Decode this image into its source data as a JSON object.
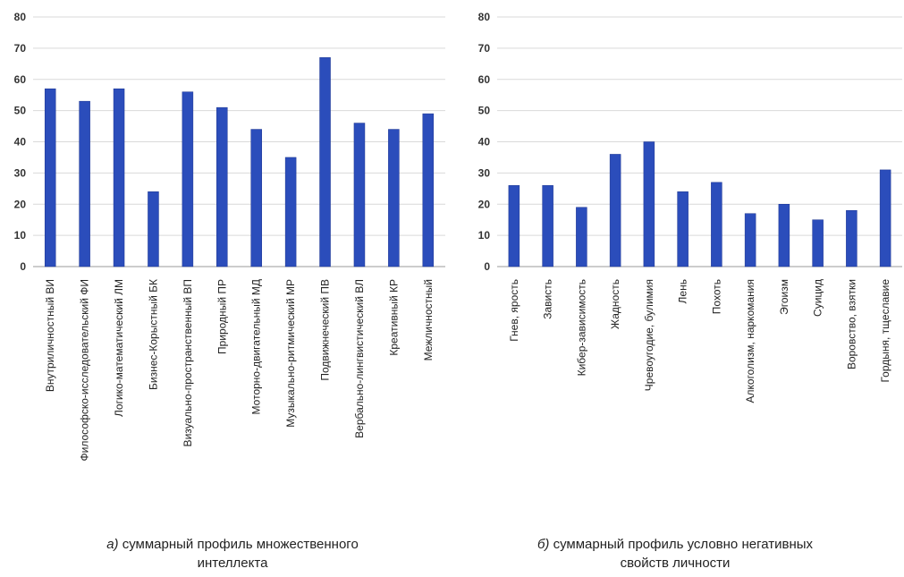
{
  "colors": {
    "bar": "#2b4dbb",
    "bar_edge": "#1c3590",
    "grid": "#d9d9d9"
  },
  "chart_data": [
    {
      "type": "bar",
      "title": "",
      "xlabel": "",
      "ylabel": "",
      "ylim": [
        0,
        80
      ],
      "yticks": [
        0,
        10,
        20,
        30,
        40,
        50,
        60,
        70,
        80
      ],
      "grid": true,
      "categories": [
        "Внутриличностный ВИ",
        "Философско-исследовательский ФИ",
        "Логико-математический ЛМ",
        "Бизнес-Корыстный БК",
        "Визуально-пространственный ВП",
        "Природный ПР",
        "Моторно-двигательный МД",
        "Музыкально-ритмический МР",
        "Подвижнеческий ПВ",
        "Вербально-лингвистический ВЛ",
        "Креативный КР",
        "Межличностный"
      ],
      "values": [
        57,
        53,
        57,
        24,
        56,
        51,
        44,
        35,
        67,
        46,
        44,
        49
      ]
    },
    {
      "type": "bar",
      "title": "",
      "xlabel": "",
      "ylabel": "",
      "ylim": [
        0,
        80
      ],
      "yticks": [
        0,
        10,
        20,
        30,
        40,
        50,
        60,
        70,
        80
      ],
      "grid": true,
      "categories": [
        "Гнев, ярость",
        "Зависть",
        "Кибер-зависимость",
        "Жадность",
        "Чревоугодие, булимия",
        "Лень",
        "Похоть",
        "Алкоголизм, наркомания",
        "Эгоизм",
        "Суицид",
        "Воровство, взятки",
        "Гордыня, тщеславие"
      ],
      "values": [
        26,
        26,
        19,
        36,
        40,
        24,
        27,
        17,
        20,
        15,
        18,
        31
      ]
    }
  ],
  "captions": [
    {
      "marker": "а)",
      "text": " суммарный профиль множественного",
      "text2": "интеллекта"
    },
    {
      "marker": "б)",
      "text": " суммарный профиль условно негативных",
      "text2": "свойств личности"
    }
  ]
}
